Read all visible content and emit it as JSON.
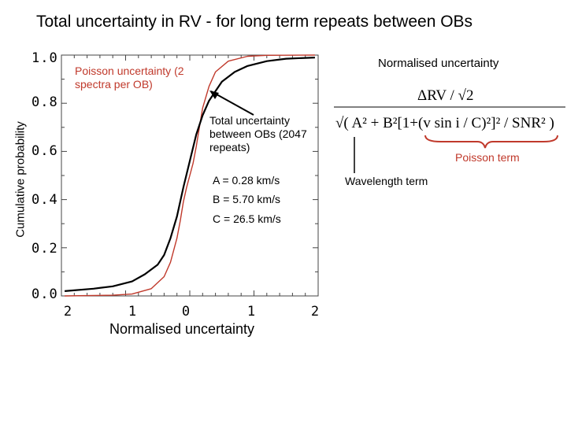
{
  "slide": {
    "title": "Total uncertainty in RV - for long term repeats between OBs"
  },
  "chart_data": {
    "type": "line",
    "title": "Total uncertainty in RV - for long term repeats between OBs",
    "xlabel": "Normalised uncertainty",
    "ylabel": "Cumulative probability",
    "xlim": [
      -2,
      2
    ],
    "ylim": [
      0,
      1
    ],
    "x_tick_labels": [
      "2",
      "1",
      "0",
      "1",
      "2"
    ],
    "y_tick_labels": [
      "1.0",
      "0.8",
      "0.6",
      "0.4",
      "0.2",
      "0.0"
    ],
    "series": [
      {
        "name": "Poisson uncertainty",
        "color": "#c0392b",
        "x": [
          -1.95,
          -1.2,
          -0.9,
          -0.6,
          -0.4,
          -0.3,
          -0.2,
          -0.15,
          -0.1,
          -0.05,
          0.0,
          0.05,
          0.1,
          0.15,
          0.2,
          0.3,
          0.4,
          0.6,
          0.9,
          1.2,
          1.95
        ],
        "y": [
          0.0,
          0.003,
          0.008,
          0.03,
          0.08,
          0.14,
          0.24,
          0.31,
          0.39,
          0.45,
          0.5,
          0.55,
          0.62,
          0.7,
          0.78,
          0.87,
          0.93,
          0.975,
          0.995,
          0.999,
          1.0
        ]
      },
      {
        "name": "Total uncertainty",
        "color": "#000000",
        "x": [
          -1.95,
          -1.5,
          -1.2,
          -0.9,
          -0.7,
          -0.5,
          -0.4,
          -0.3,
          -0.2,
          -0.1,
          0.0,
          0.1,
          0.2,
          0.3,
          0.4,
          0.5,
          0.7,
          0.9,
          1.2,
          1.5,
          1.95
        ],
        "y": [
          0.02,
          0.03,
          0.04,
          0.06,
          0.09,
          0.13,
          0.17,
          0.24,
          0.33,
          0.45,
          0.56,
          0.67,
          0.75,
          0.81,
          0.85,
          0.89,
          0.93,
          0.955,
          0.975,
          0.985,
          0.99
        ]
      }
    ]
  },
  "annotations": {
    "poisson_note": "Poisson uncertainty (2 spectra per OB)",
    "total_note": "Total uncertainty between OBs (2047 repeats)",
    "params": {
      "a": "A = 0.28 km/s",
      "b": "B = 5.70 km/s",
      "c": "C = 26.5 km/s"
    }
  },
  "formula": {
    "title": "Normalised uncertainty",
    "numerator": "ΔRV / √2",
    "expression": "√( A² + B²[1+(v sin i / C)²]² / SNR² )",
    "poisson_term": "Poisson term",
    "wavelength_term": "Wavelength term"
  },
  "colors": {
    "poisson": "#c0392b",
    "total": "#000000"
  }
}
